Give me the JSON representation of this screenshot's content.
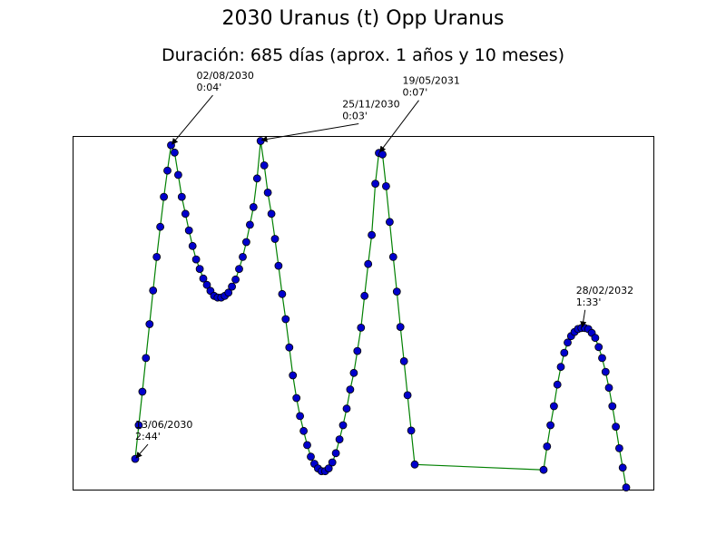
{
  "chart_data": {
    "type": "line",
    "title": "2030 Uranus (t) Opp Uranus",
    "subtitle": "Duración: 685 días (aprox. 1 años y 10 meses)",
    "xlabel": "",
    "ylabel": "",
    "ylim": [
      0,
      1
    ],
    "grid": false,
    "line_color": "#008000",
    "marker_color": "#0000cc",
    "series": [
      {
        "values": [
          0.087,
          0.182,
          0.277,
          0.372,
          0.468,
          0.563,
          0.658,
          0.743,
          0.828,
          0.902,
          0.974,
          0.953,
          0.89,
          0.828,
          0.78,
          0.733,
          0.689,
          0.651,
          0.624,
          0.597,
          0.579,
          0.562,
          0.548,
          0.543,
          0.543,
          0.548,
          0.557,
          0.574,
          0.594,
          0.624,
          0.658,
          0.7,
          0.749,
          0.799,
          0.88,
          0.986,
          0.917,
          0.84,
          0.78,
          0.709,
          0.633,
          0.553,
          0.482,
          0.402,
          0.323,
          0.259,
          0.208,
          0.166,
          0.126,
          0.093,
          0.073,
          0.06,
          0.052,
          0.052,
          0.06,
          0.077,
          0.103,
          0.142,
          0.182,
          0.229,
          0.283,
          0.33,
          0.392,
          0.458,
          0.548,
          0.638,
          0.72,
          0.865,
          0.952,
          0.948,
          0.858,
          0.757,
          0.658,
          0.56,
          0.46,
          0.363,
          0.267,
          0.167,
          0.071,
          0.056,
          0.122,
          0.182,
          0.236,
          0.297,
          0.347,
          0.387,
          0.416,
          0.434,
          0.446,
          0.454,
          0.457,
          0.457,
          0.454,
          0.443,
          0.429,
          0.403,
          0.372,
          0.333,
          0.288,
          0.236,
          0.178,
          0.117,
          0.062,
          0.006
        ]
      }
    ],
    "annotations": [
      {
        "date": "13/06/2030",
        "time": "2:44'",
        "index": 0
      },
      {
        "date": "02/08/2030",
        "time": "0:04'",
        "index": 10
      },
      {
        "date": "25/11/2030",
        "time": "0:03'",
        "index": 35
      },
      {
        "date": "19/05/2031",
        "time": "0:07'",
        "index": 68
      },
      {
        "date": "28/02/2032",
        "time": "1:33'",
        "index": 90
      }
    ]
  }
}
